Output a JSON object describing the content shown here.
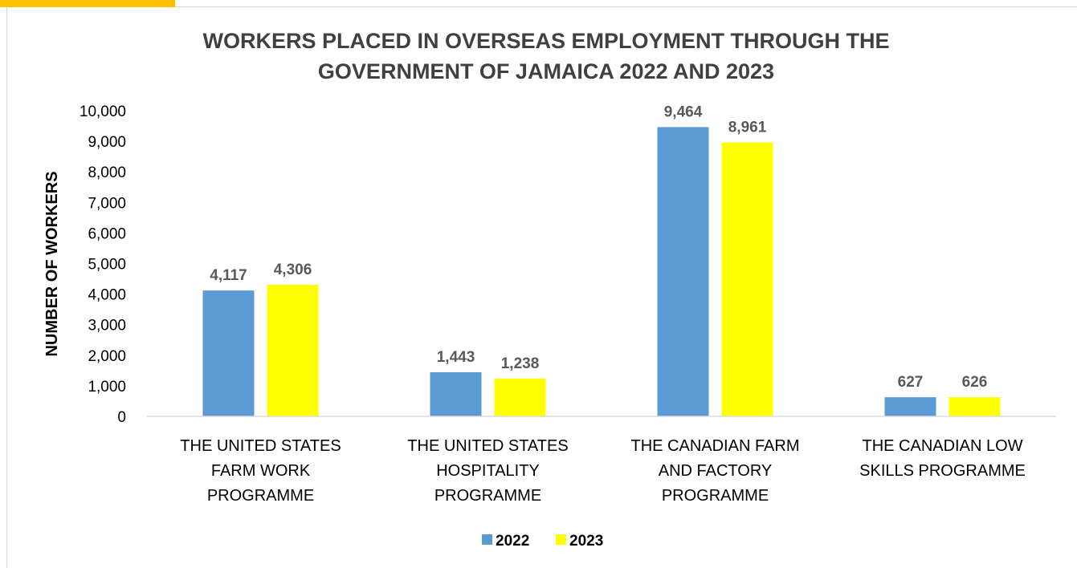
{
  "chart_data": {
    "type": "bar",
    "title": "WORKERS PLACED IN OVERSEAS EMPLOYMENT THROUGH THE\nGOVERNMENT OF JAMAICA 2022 AND 2023",
    "xlabel": "",
    "ylabel": "NUMBER OF WORKERS",
    "ylim": [
      0,
      10000
    ],
    "yticks": [
      "0",
      "1,000",
      "2,000",
      "3,000",
      "4,000",
      "5,000",
      "6,000",
      "7,000",
      "8,000",
      "9,000",
      "10,000"
    ],
    "categories": [
      [
        "THE UNITED STATES",
        "FARM WORK",
        "PROGRAMME"
      ],
      [
        "THE UNITED STATES",
        "HOSPITALITY",
        "PROGRAMME"
      ],
      [
        "THE CANADIAN FARM",
        "AND FACTORY",
        "PROGRAMME"
      ],
      [
        "THE CANADIAN LOW",
        "SKILLS PROGRAMME"
      ]
    ],
    "series": [
      {
        "name": "2022",
        "values": [
          4117,
          1443,
          9464,
          627
        ],
        "labels": [
          "4,117",
          "1,443",
          "9,464",
          "627"
        ],
        "color": "#5b9bd5"
      },
      {
        "name": "2023",
        "values": [
          4306,
          1238,
          8961,
          626
        ],
        "labels": [
          "4,306",
          "1,238",
          "8,961",
          "626"
        ],
        "color": "#ffff00"
      }
    ],
    "grid": false,
    "legend": "bottom"
  },
  "accent_color": "#ffc000"
}
